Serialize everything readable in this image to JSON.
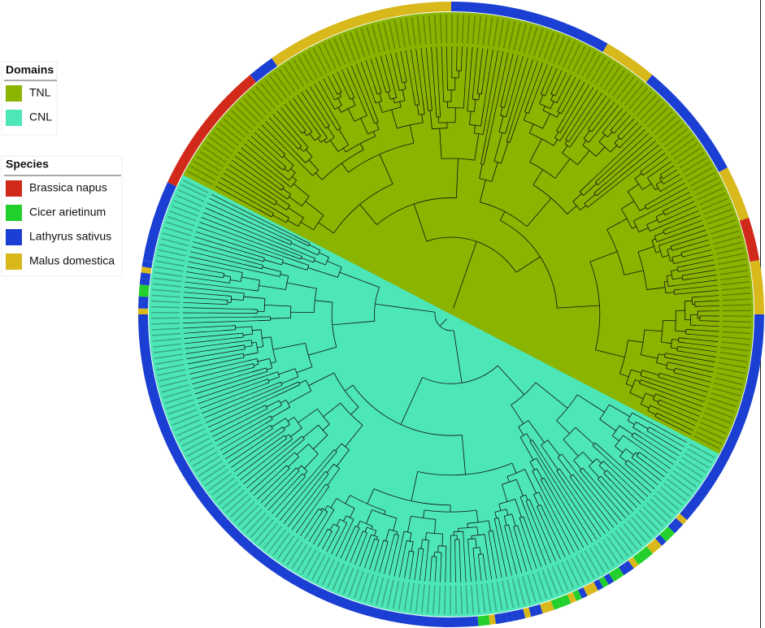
{
  "legend": {
    "domains": {
      "title": "Domains",
      "items": [
        {
          "label": "TNL",
          "color": "#8ab400"
        },
        {
          "label": "CNL",
          "color": "#4de6b6"
        }
      ]
    },
    "species": {
      "title": "Species",
      "items": [
        {
          "label": "Brassica napus",
          "color": "#d12a1a"
        },
        {
          "label": "Cicer arietinum",
          "color": "#22d02c"
        },
        {
          "label": "Lathyrus sativus",
          "color": "#1a3fd2"
        },
        {
          "label": "Malus domestica",
          "color": "#d9b81c"
        }
      ]
    }
  }
}
